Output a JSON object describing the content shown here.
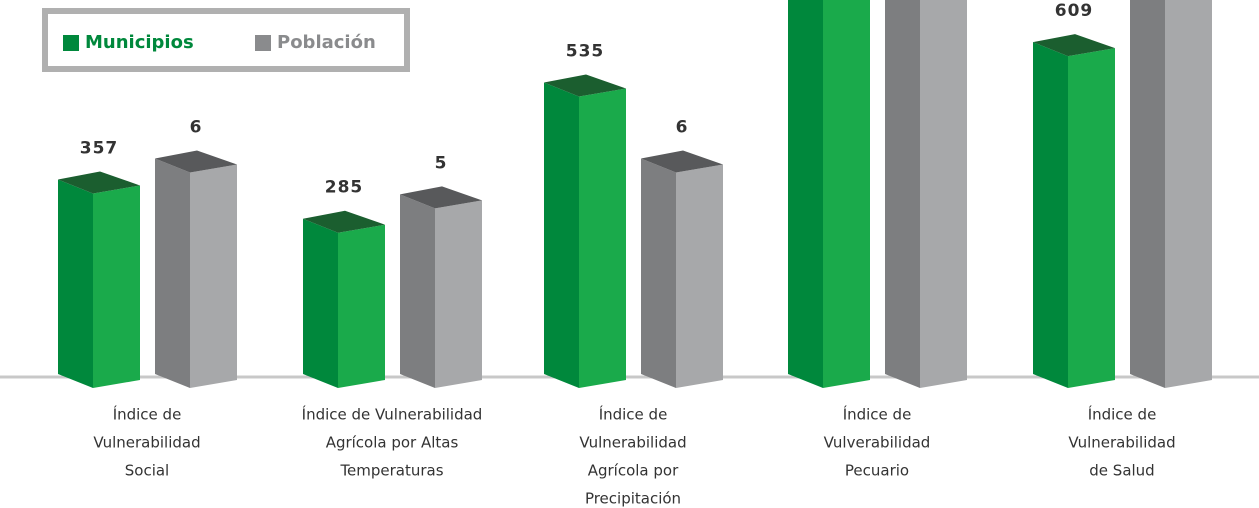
{
  "chart_data": {
    "type": "bar3d",
    "categories": [
      [
        "Índice de",
        "Vulnerabilidad",
        "Social"
      ],
      [
        "Índice de Vulnerabilidad",
        "Agrícola por Altas",
        "Temperaturas"
      ],
      [
        "Índice de",
        "Vulnerabilidad",
        "Agrícola por",
        "Precipitación"
      ],
      [
        "Índice de",
        "Vulverabilidad",
        "Pecuario"
      ],
      [
        "Índice de",
        "Vulnerabilidad",
        "de Salud"
      ]
    ],
    "series": [
      {
        "name": "Municipios",
        "color": "#1aaa4b",
        "values": [
          357,
          285,
          535,
          800,
          609
        ],
        "value_labels": [
          "357",
          "285",
          "535",
          null,
          "609"
        ]
      },
      {
        "name": "Población",
        "color": "#a7a8aa",
        "axis": "y2",
        "values": [
          6,
          5,
          6,
          12,
          12
        ],
        "value_labels": [
          "6",
          "5",
          "6",
          null,
          null
        ]
      }
    ],
    "ylim": [
      0,
      712
    ],
    "y2lim": [
      0,
      10.8
    ]
  }
}
